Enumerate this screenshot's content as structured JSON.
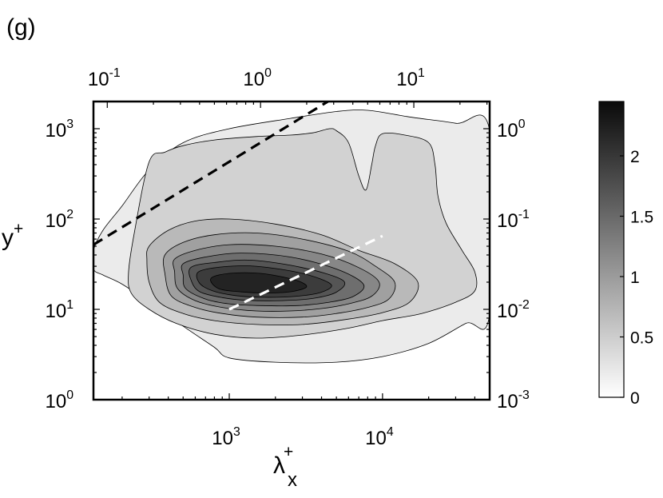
{
  "panel_label": "(g)",
  "chart_data": {
    "type": "heatmap",
    "subtype": "filled-contour",
    "title": "",
    "xlabel": {
      "base": "λ",
      "sup": "+",
      "sub": "x"
    },
    "ylabel": {
      "base": "y",
      "sup": "+"
    },
    "x_scale": "log",
    "y_scale": "log",
    "xlim": [
      130,
      50000
    ],
    "ylim": [
      1,
      2000
    ],
    "x_ticks": [
      {
        "value": 1000,
        "mant": "10",
        "exp": "3"
      },
      {
        "value": 10000,
        "mant": "10",
        "exp": "4"
      }
    ],
    "y_ticks": [
      {
        "value": 1,
        "mant": "10",
        "exp": "0"
      },
      {
        "value": 10,
        "mant": "10",
        "exp": "1"
      },
      {
        "value": 100,
        "mant": "10",
        "exp": "2"
      },
      {
        "value": 1000,
        "mant": "10",
        "exp": "3"
      }
    ],
    "top_axis": {
      "scale": "log",
      "ticks": [
        {
          "x_value": 160,
          "mant": "10",
          "exp": "-1"
        },
        {
          "x_value": 1600,
          "mant": "10",
          "exp": "0"
        },
        {
          "x_value": 16000,
          "mant": "10",
          "exp": "1"
        }
      ]
    },
    "right_axis": {
      "scale": "log",
      "ticks": [
        {
          "y_value": 1,
          "mant": "10",
          "exp": "-3"
        },
        {
          "y_value": 10,
          "mant": "10",
          "exp": "-2"
        },
        {
          "y_value": 100,
          "mant": "10",
          "exp": "-1"
        },
        {
          "y_value": 1000,
          "mant": "10",
          "exp": "0"
        }
      ]
    },
    "colorbar": {
      "colormap": "gray-reversed",
      "range": [
        0,
        2.45
      ],
      "ticks": [
        {
          "value": 0,
          "label": "0"
        },
        {
          "value": 0.5,
          "label": "0.5"
        },
        {
          "value": 1,
          "label": "1"
        },
        {
          "value": 1.5,
          "label": "1.5"
        },
        {
          "value": 2,
          "label": "2"
        }
      ]
    },
    "contour_levels": [
      0.2,
      0.45,
      0.7,
      0.95,
      1.2,
      1.45,
      1.7,
      1.95,
      2.2
    ],
    "peak": {
      "x": 1400,
      "y": 17,
      "value": 2.3
    },
    "contours": [
      {
        "level": 0.2,
        "points": [
          [
            130,
            28
          ],
          [
            150,
            24
          ],
          [
            200,
            19
          ],
          [
            300,
            12
          ],
          [
            500,
            6.5
          ],
          [
            800,
            3.8
          ],
          [
            1000,
            2.9
          ],
          [
            2000,
            2.6
          ],
          [
            5000,
            2.6
          ],
          [
            10000,
            3.0
          ],
          [
            20000,
            4.2
          ],
          [
            35000,
            7
          ],
          [
            50000,
            9
          ],
          [
            50000,
            950
          ],
          [
            30000,
            1150
          ],
          [
            15000,
            1350
          ],
          [
            8000,
            1600
          ],
          [
            5000,
            1550
          ],
          [
            2500,
            1300
          ],
          [
            1000,
            1000
          ],
          [
            500,
            700
          ],
          [
            300,
            350
          ],
          [
            200,
            140
          ],
          [
            150,
            75
          ],
          [
            130,
            45
          ]
        ]
      },
      {
        "level": 0.45,
        "points": [
          [
            300,
            430
          ],
          [
            380,
            550
          ],
          [
            500,
            650
          ],
          [
            800,
            750
          ],
          [
            1500,
            820
          ],
          [
            2500,
            850
          ],
          [
            3500,
            900
          ],
          [
            4500,
            1000
          ],
          [
            5000,
            950
          ],
          [
            6000,
            700
          ],
          [
            7000,
            300
          ],
          [
            7800,
            210
          ],
          [
            8500,
            400
          ],
          [
            9000,
            650
          ],
          [
            10000,
            880
          ],
          [
            14000,
            850
          ],
          [
            20000,
            700
          ],
          [
            22000,
            400
          ],
          [
            23000,
            180
          ],
          [
            26000,
            90
          ],
          [
            33000,
            45
          ],
          [
            40000,
            26
          ],
          [
            40000,
            16
          ],
          [
            30000,
            12
          ],
          [
            18000,
            9
          ],
          [
            10000,
            7.5
          ],
          [
            6000,
            6.2
          ],
          [
            3000,
            5.2
          ],
          [
            1500,
            4.8
          ],
          [
            800,
            5.3
          ],
          [
            450,
            7
          ],
          [
            300,
            10
          ],
          [
            230,
            15
          ],
          [
            220,
            25
          ],
          [
            240,
            70
          ]
        ]
      },
      {
        "level": 0.7,
        "points": [
          [
            300,
            50
          ],
          [
            400,
            75
          ],
          [
            600,
            95
          ],
          [
            1000,
            100
          ],
          [
            2000,
            88
          ],
          [
            4000,
            67
          ],
          [
            7000,
            45
          ],
          [
            12000,
            32
          ],
          [
            17000,
            20
          ],
          [
            15000,
            12
          ],
          [
            10000,
            9.2
          ],
          [
            6000,
            7.8
          ],
          [
            3000,
            6.8
          ],
          [
            1500,
            6.8
          ],
          [
            800,
            7.5
          ],
          [
            500,
            9
          ],
          [
            350,
            12
          ],
          [
            300,
            20
          ],
          [
            290,
            35
          ]
        ]
      },
      {
        "level": 0.95,
        "points": [
          [
            380,
            40
          ],
          [
            500,
            55
          ],
          [
            800,
            67
          ],
          [
            1500,
            70
          ],
          [
            3000,
            60
          ],
          [
            6000,
            44
          ],
          [
            9000,
            30
          ],
          [
            12000,
            20
          ],
          [
            11000,
            13
          ],
          [
            8000,
            10.5
          ],
          [
            5000,
            9
          ],
          [
            3000,
            8.2
          ],
          [
            1500,
            8.2
          ],
          [
            900,
            9
          ],
          [
            600,
            10.5
          ],
          [
            420,
            14
          ],
          [
            380,
            25
          ]
        ]
      },
      {
        "level": 1.2,
        "points": [
          [
            440,
            36
          ],
          [
            600,
            45
          ],
          [
            1000,
            52
          ],
          [
            2000,
            50
          ],
          [
            4000,
            41
          ],
          [
            7000,
            29
          ],
          [
            9500,
            20
          ],
          [
            8500,
            14
          ],
          [
            6000,
            11.5
          ],
          [
            4000,
            10.2
          ],
          [
            2500,
            9.6
          ],
          [
            1500,
            9.6
          ],
          [
            900,
            10.5
          ],
          [
            600,
            12.5
          ],
          [
            460,
            17
          ],
          [
            440,
            26
          ]
        ]
      },
      {
        "level": 1.45,
        "points": [
          [
            500,
            32
          ],
          [
            700,
            38
          ],
          [
            1200,
            42
          ],
          [
            2500,
            38
          ],
          [
            5000,
            28
          ],
          [
            7500,
            19
          ],
          [
            6500,
            14
          ],
          [
            4500,
            12
          ],
          [
            2800,
            11
          ],
          [
            1600,
            11
          ],
          [
            1000,
            11.5
          ],
          [
            700,
            13
          ],
          [
            520,
            17
          ],
          [
            500,
            24
          ]
        ]
      },
      {
        "level": 1.7,
        "points": [
          [
            560,
            29
          ],
          [
            800,
            33
          ],
          [
            1400,
            35
          ],
          [
            3000,
            29
          ],
          [
            5500,
            21
          ],
          [
            5000,
            15.5
          ],
          [
            3500,
            13.2
          ],
          [
            2200,
            12.5
          ],
          [
            1300,
            12.6
          ],
          [
            900,
            13.5
          ],
          [
            650,
            15.5
          ],
          [
            570,
            20
          ]
        ]
      },
      {
        "level": 1.95,
        "points": [
          [
            630,
            26
          ],
          [
            900,
            29.5
          ],
          [
            1500,
            30
          ],
          [
            3000,
            25
          ],
          [
            4600,
            19
          ],
          [
            4000,
            15.5
          ],
          [
            2800,
            14
          ],
          [
            1700,
            13.6
          ],
          [
            1100,
            14.2
          ],
          [
            780,
            16
          ],
          [
            640,
            19.5
          ]
        ]
      },
      {
        "level": 2.2,
        "points": [
          [
            760,
            22
          ],
          [
            1000,
            25
          ],
          [
            1600,
            25
          ],
          [
            2600,
            21.5
          ],
          [
            3200,
            18
          ],
          [
            2600,
            15.8
          ],
          [
            1800,
            15.2
          ],
          [
            1200,
            15.6
          ],
          [
            850,
            17
          ]
        ]
      }
    ],
    "reference_lines": [
      {
        "name": "black-dashed-line",
        "color": "#000000",
        "points": [
          [
            130,
            52
          ],
          [
            4400,
            2000
          ]
        ]
      },
      {
        "name": "white-dashed-line",
        "color": "#ffffff",
        "points": [
          [
            1000,
            10
          ],
          [
            10000,
            65
          ]
        ]
      }
    ]
  }
}
